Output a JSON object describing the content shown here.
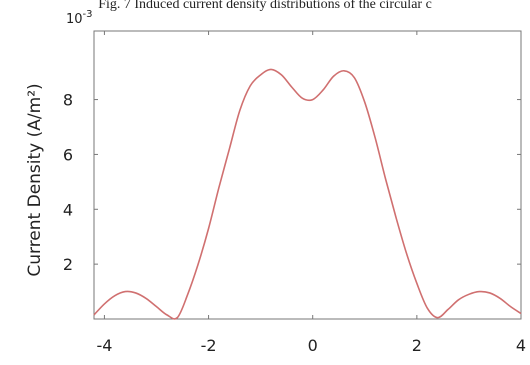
{
  "caption": "Fig. 7 Induced current density distributions of the circular c",
  "chart_data": {
    "type": "line",
    "title": "",
    "xlabel": "",
    "ylabel": "Current Density (A/m²)",
    "y_multiplier_base": "10",
    "y_multiplier_exp": "-3",
    "xlim": [
      -4.2,
      4.0
    ],
    "ylim": [
      0,
      10.5
    ],
    "x_ticks": [
      -4,
      -2,
      0,
      2,
      4
    ],
    "x_tick_labels": [
      "-4",
      "-2",
      "0",
      "2",
      "4"
    ],
    "y_ticks": [
      2,
      4,
      6,
      8
    ],
    "y_tick_labels": [
      "2",
      "4",
      "6",
      "8"
    ],
    "grid": false,
    "series": [
      {
        "color": "#d07070",
        "x": [
          -4.2,
          -4.0,
          -3.8,
          -3.6,
          -3.4,
          -3.2,
          -3.0,
          -2.8,
          -2.6,
          -2.4,
          -2.2,
          -2.0,
          -1.8,
          -1.6,
          -1.4,
          -1.2,
          -1.0,
          -0.8,
          -0.6,
          -0.4,
          -0.2,
          0.0,
          0.2,
          0.4,
          0.6,
          0.8,
          1.0,
          1.2,
          1.4,
          1.6,
          1.8,
          2.0,
          2.2,
          2.4,
          2.6,
          2.8,
          3.0,
          3.2,
          3.4,
          3.6,
          3.8,
          4.0
        ],
        "y": [
          0.15,
          0.55,
          0.85,
          1.0,
          0.95,
          0.75,
          0.45,
          0.15,
          0.05,
          0.9,
          2.0,
          3.3,
          4.8,
          6.2,
          7.6,
          8.5,
          8.9,
          9.1,
          8.9,
          8.45,
          8.05,
          8.0,
          8.35,
          8.85,
          9.05,
          8.8,
          7.9,
          6.6,
          5.1,
          3.7,
          2.4,
          1.3,
          0.4,
          0.05,
          0.35,
          0.7,
          0.9,
          1.0,
          0.95,
          0.75,
          0.45,
          0.2
        ]
      }
    ]
  }
}
